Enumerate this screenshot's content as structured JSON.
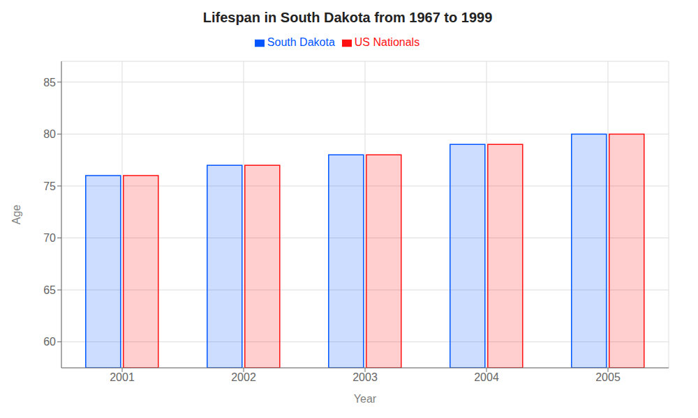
{
  "chart_data": {
    "type": "bar",
    "title": "Lifespan in South Dakota from 1967 to 1999",
    "xlabel": "Year",
    "ylabel": "Age",
    "categories": [
      "2001",
      "2002",
      "2003",
      "2004",
      "2005"
    ],
    "series": [
      {
        "name": "South Dakota",
        "color": "#0055ff",
        "values": [
          76,
          77,
          78,
          79,
          80
        ]
      },
      {
        "name": "US Nationals",
        "color": "#ff1111",
        "values": [
          76,
          77,
          78,
          79,
          80
        ]
      }
    ],
    "ylim": [
      57.5,
      87
    ],
    "yticks": [
      60,
      65,
      70,
      75,
      80,
      85
    ],
    "grid": true,
    "legend": "top"
  }
}
